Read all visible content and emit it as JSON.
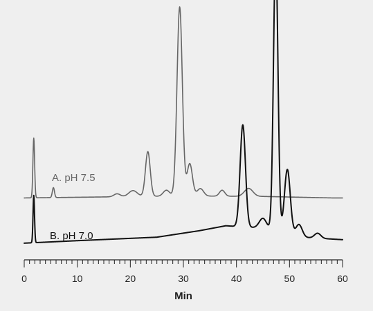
{
  "colors": {
    "background": "#efefef",
    "axis": "#222222",
    "trace_a": "#666666",
    "trace_b": "#111111",
    "label_a": "#666666",
    "label_b": "#111111"
  },
  "chart_data": {
    "type": "line",
    "xlabel": "Min",
    "ylabel": "",
    "xlim": [
      0,
      60
    ],
    "x_ticks": [
      0,
      10,
      20,
      30,
      40,
      50,
      60
    ],
    "minor_tick_step": 1,
    "grid": false,
    "y_axis_shown": false,
    "series": [
      {
        "name": "A. pH 7.5",
        "baseline": 0.05,
        "drift": [
          [
            0,
            0.0
          ],
          [
            15,
            0.02
          ],
          [
            30,
            0.04
          ],
          [
            45,
            0.03
          ],
          [
            58,
            0.0
          ],
          [
            60,
            0.0
          ]
        ],
        "peaks": [
          [
            1.8,
            1.2,
            0.16
          ],
          [
            5.5,
            0.2,
            0.2
          ],
          [
            17.5,
            0.06,
            0.6
          ],
          [
            20.5,
            0.12,
            0.8
          ],
          [
            23.3,
            0.9,
            0.45
          ],
          [
            26.8,
            0.12,
            0.6
          ],
          [
            29.3,
            3.8,
            0.5
          ],
          [
            31.2,
            0.65,
            0.5
          ],
          [
            33.2,
            0.15,
            0.6
          ],
          [
            37.3,
            0.12,
            0.5
          ],
          [
            42.3,
            0.16,
            0.8
          ]
        ]
      },
      {
        "name": "B. pH 7.0",
        "baseline": 0.03,
        "drift": [
          [
            0,
            0.0
          ],
          [
            10,
            0.05
          ],
          [
            25,
            0.12
          ],
          [
            33,
            0.25
          ],
          [
            38,
            0.35
          ],
          [
            45,
            0.3
          ],
          [
            52,
            0.12
          ],
          [
            60,
            0.07
          ]
        ],
        "peaks": [
          [
            1.8,
            0.95,
            0.14
          ],
          [
            41.2,
            2.05,
            0.5
          ],
          [
            45.0,
            0.2,
            0.7
          ],
          [
            47.4,
            5.6,
            0.42
          ],
          [
            49.6,
            1.3,
            0.55
          ],
          [
            51.8,
            0.25,
            0.6
          ],
          [
            55.3,
            0.1,
            0.6
          ]
        ]
      }
    ]
  }
}
